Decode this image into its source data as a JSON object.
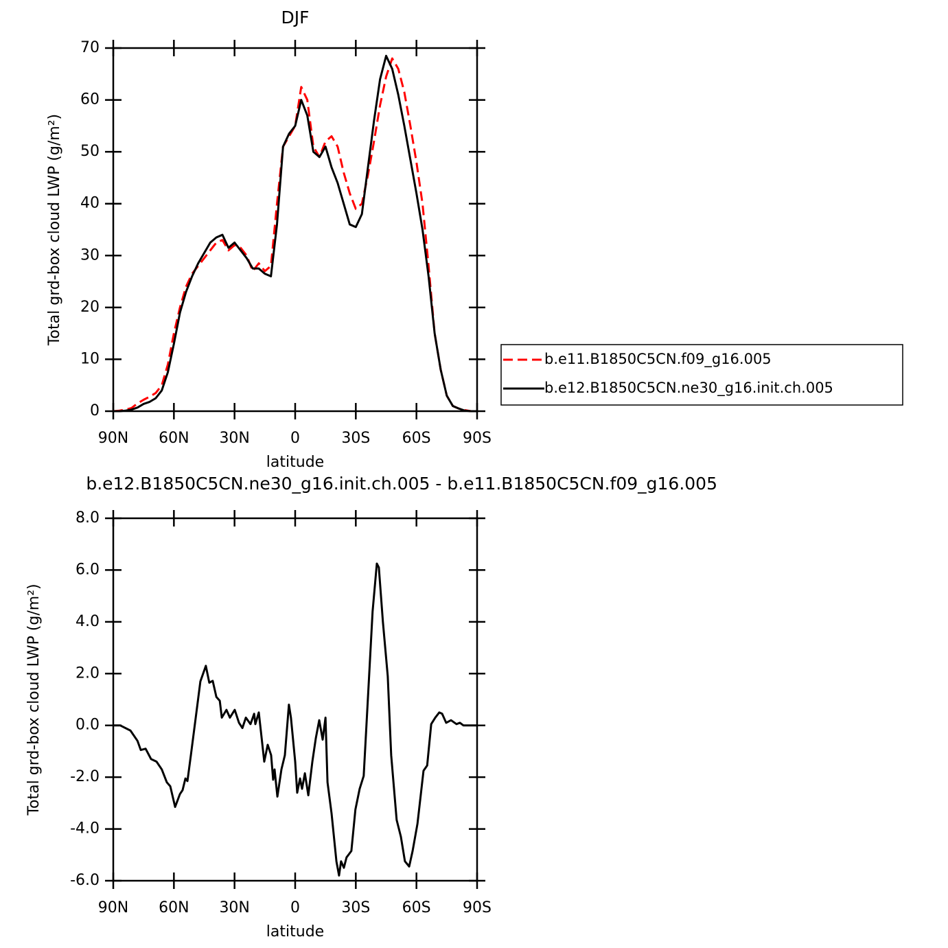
{
  "chart_data": [
    {
      "type": "line",
      "title": "DJF",
      "xlabel": "latitude",
      "ylabel": "Total grd-box cloud LWP (g/m²)",
      "x": [
        90,
        87,
        84,
        81,
        78,
        75,
        72,
        69,
        66,
        63,
        60,
        57,
        54,
        51,
        48,
        45,
        42,
        39,
        36,
        33,
        30,
        27,
        24,
        21,
        18,
        15,
        12,
        9,
        6,
        3,
        0,
        -3,
        -6,
        -9,
        -12,
        -15,
        -18,
        -21,
        -24,
        -27,
        -30,
        -33,
        -36,
        -39,
        -42,
        -45,
        -48,
        -51,
        -54,
        -57,
        -60,
        -63,
        -66,
        -69,
        -72,
        -75,
        -78,
        -81,
        -84,
        -87,
        -90
      ],
      "series": [
        {
          "name": "b.e11.B1850C5CN.f09_g16.005",
          "color": "#ff0000",
          "style": "dashed",
          "values": [
            0,
            0.1,
            0.3,
            0.6,
            1.5,
            2.2,
            2.8,
            3.5,
            5,
            9,
            15,
            20,
            24,
            26.5,
            28,
            29.5,
            31,
            32.5,
            33,
            31,
            32,
            31.5,
            30,
            27,
            28.5,
            27,
            28,
            40,
            51,
            53,
            55,
            62.5,
            60,
            51,
            49,
            52,
            53,
            51,
            46,
            42,
            39,
            40,
            45.5,
            52,
            59,
            64.5,
            68,
            66,
            61.5,
            55,
            48,
            40,
            28,
            15,
            8,
            3,
            1,
            0.5,
            0.2,
            0,
            0
          ]
        },
        {
          "name": "b.e12.B1850C5CN.ne30_g16.init.ch.005",
          "color": "#000000",
          "style": "solid",
          "values": [
            0,
            0,
            0.1,
            0.3,
            0.7,
            1.4,
            1.8,
            2.5,
            4,
            7.5,
            13,
            19,
            23,
            26,
            28.5,
            30.5,
            32.5,
            33.5,
            34,
            31.5,
            32.5,
            31,
            29.5,
            27.5,
            27.5,
            26.5,
            26,
            36,
            51,
            53.5,
            55,
            60,
            57,
            50,
            49,
            51,
            47,
            44,
            40,
            36,
            35.5,
            38,
            47,
            56,
            64,
            68.5,
            66,
            61,
            55,
            48.5,
            42,
            35,
            26,
            15,
            8,
            3,
            1,
            0.5,
            0.1,
            0,
            0
          ]
        }
      ],
      "xlim": [
        90,
        -90
      ],
      "xticks": [
        {
          "value": 90,
          "label": "90N"
        },
        {
          "value": 60,
          "label": "60N"
        },
        {
          "value": 30,
          "label": "30N"
        },
        0,
        {
          "value": -30,
          "label": "30S"
        },
        {
          "value": -60,
          "label": "60S"
        },
        {
          "value": -90,
          "label": "90S"
        }
      ],
      "ylim": [
        0,
        70
      ],
      "yticks": [
        0,
        10,
        20,
        30,
        40,
        50,
        60,
        70
      ],
      "legend": "right"
    },
    {
      "type": "line",
      "title": "b.e12.B1850C5CN.ne30_g16.init.ch.005 - b.e11.B1850C5CN.f09_g16.005",
      "xlabel": "latitude",
      "ylabel": "Total grd-box cloud LWP (g/m²)",
      "x": [
        90,
        86.6,
        81.5,
        78,
        76.4,
        74,
        71.3,
        68.6,
        66,
        63.5,
        61.8,
        59.4,
        57,
        55.7,
        54.3,
        53.3,
        51.6,
        49.2,
        46.9,
        44.2,
        42.5,
        40.8,
        39,
        37.3,
        36.3,
        34,
        32.3,
        29.9,
        27.8,
        26.1,
        24.4,
        22.1,
        20.3,
        19.7,
        18,
        17,
        15.3,
        13.6,
        11.9,
        10.9,
        10.2,
        8.8,
        6.8,
        5.1,
        3.1,
        2.1,
        0,
        -1,
        -2.4,
        -3.4,
        -4.8,
        -6.5,
        -8.5,
        -10.2,
        -11.9,
        -13.6,
        -15,
        -16,
        -18,
        -20.4,
        -21.7,
        -22.7,
        -24.1,
        -25.4,
        -27.8,
        -29.8,
        -31.9,
        -33.9,
        -36.3,
        -38.3,
        -40.4,
        -41.4,
        -43.4,
        -45.8,
        -47.5,
        -50.2,
        -52.3,
        -54.3,
        -56.4,
        -58.1,
        -60.5,
        -63.5,
        -65.3,
        -67.3,
        -69.3,
        -71.3,
        -72.7,
        -74.7,
        -77.1,
        -79.8,
        -81.5,
        -83.2,
        -90
      ],
      "values": [
        0,
        0,
        -0.2,
        -0.6,
        -0.95,
        -0.9,
        -1.3,
        -1.4,
        -1.7,
        -2.2,
        -2.35,
        -3.15,
        -2.65,
        -2.5,
        -2.05,
        -2.15,
        -1.15,
        0.3,
        1.7,
        2.3,
        1.65,
        1.72,
        1.1,
        0.95,
        0.3,
        0.6,
        0.3,
        0.6,
        0.1,
        -0.1,
        0.3,
        0.05,
        0.45,
        0.05,
        0.5,
        -0.2,
        -1.4,
        -0.75,
        -1.15,
        -2.1,
        -1.7,
        -2.75,
        -1.7,
        -1.15,
        0.8,
        0.3,
        -1.4,
        -2.6,
        -2.05,
        -2.45,
        -1.85,
        -2.7,
        -1.4,
        -0.5,
        0.2,
        -0.55,
        0.3,
        -2.2,
        -3.4,
        -5.25,
        -5.8,
        -5.25,
        -5.5,
        -5.1,
        -4.85,
        -3.25,
        -2.45,
        -1.95,
        1.5,
        4.4,
        6.25,
        6.1,
        4.0,
        1.9,
        -1.15,
        -3.65,
        -4.3,
        -5.25,
        -5.45,
        -4.85,
        -3.8,
        -1.75,
        -1.55,
        0.05,
        0.3,
        0.5,
        0.45,
        0.1,
        0.2,
        0.05,
        0.1,
        0,
        0
      ],
      "color": "#000000",
      "style": "solid",
      "xlim": [
        90,
        -90
      ],
      "xticks": [
        {
          "value": 90,
          "label": "90N"
        },
        {
          "value": 60,
          "label": "60N"
        },
        {
          "value": 30,
          "label": "30N"
        },
        0,
        {
          "value": -30,
          "label": "30S"
        },
        {
          "value": -60,
          "label": "60S"
        },
        {
          "value": -90,
          "label": "90S"
        }
      ],
      "ylim": [
        -6,
        8
      ],
      "yticks": [
        {
          "value": -6,
          "label": "-6.0"
        },
        {
          "value": -4,
          "label": "-4.0"
        },
        {
          "value": -2,
          "label": "-2.0"
        },
        {
          "value": 0,
          "label": "0.0"
        },
        {
          "value": 2,
          "label": "2.0"
        },
        {
          "value": 4,
          "label": "4.0"
        },
        {
          "value": 6,
          "label": "6.0"
        },
        {
          "value": 8,
          "label": "8.0"
        }
      ]
    }
  ]
}
